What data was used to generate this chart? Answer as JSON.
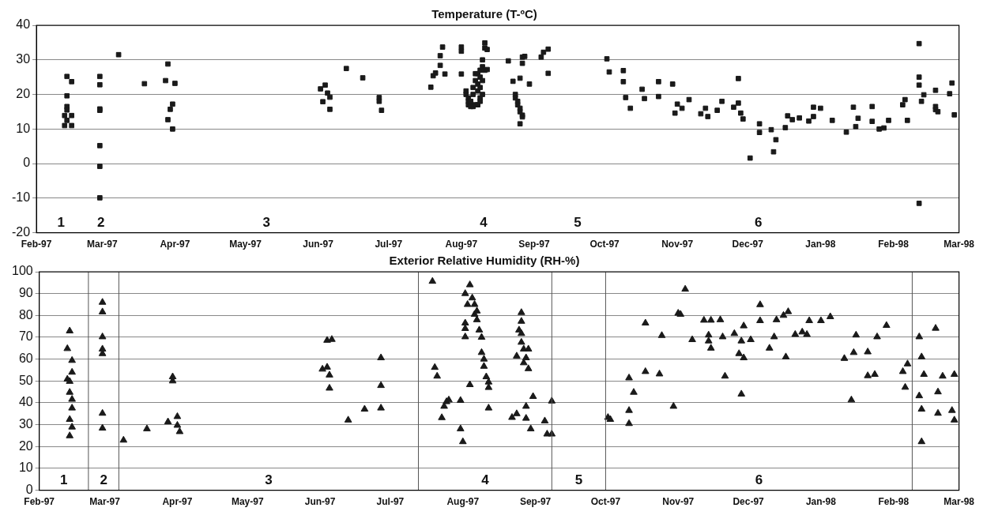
{
  "chart_data": [
    {
      "type": "scatter",
      "title": "Temperature (T-ºC)",
      "marker": "square",
      "grid": "y",
      "legend": false,
      "xlim": [
        "1997-02",
        "1998-03"
      ],
      "xticks": [
        {
          "value": "1997-02",
          "label": "Feb-97"
        },
        {
          "value": "1997-03",
          "label": "Mar-97"
        },
        {
          "value": "1997-04",
          "label": "Apr-97"
        },
        {
          "value": "1997-05",
          "label": "May-97"
        },
        {
          "value": "1997-06",
          "label": "Jun-97"
        },
        {
          "value": "1997-07",
          "label": "Jul-97"
        },
        {
          "value": "1997-08",
          "label": "Aug-97"
        },
        {
          "value": "1997-09",
          "label": "Sep-97"
        },
        {
          "value": "1997-10",
          "label": "Oct-97"
        },
        {
          "value": "1997-11",
          "label": "Nov-97"
        },
        {
          "value": "1997-12",
          "label": "Dec-97"
        },
        {
          "value": "1998-01",
          "label": "Jan-98"
        },
        {
          "value": "1998-02",
          "label": "Feb-98"
        },
        {
          "value": "1998-03",
          "label": "Mar-98"
        }
      ],
      "ylim": [
        -20,
        40
      ],
      "yticks": [
        -20,
        -10,
        0,
        10,
        20,
        30,
        40
      ],
      "series": [
        {
          "color": "#1a1a1a",
          "x": [
            "1997-02-14",
            "1997-02-16",
            "1997-02-14",
            "1997-02-14",
            "1997-02-14",
            "1997-02-13",
            "1997-02-16",
            "1997-02-14",
            "1997-02-13",
            "1997-02-16",
            "1997-02-28",
            "1997-02-28",
            "1997-02-28",
            "1997-02-28",
            "1997-02-28",
            "1997-02-28",
            "1997-02-28",
            "1997-03-08",
            "1997-03-19",
            "1997-03-28",
            "1997-03-29",
            "1997-04-01",
            "1997-03-31",
            "1997-03-30",
            "1997-03-29",
            "1997-03-31",
            "1997-06-02",
            "1997-06-04",
            "1997-06-03",
            "1997-06-05",
            "1997-06-06",
            "1997-06-06",
            "1997-06-13",
            "1997-06-20",
            "1997-06-27",
            "1997-06-27",
            "1997-06-28",
            "1997-07-19",
            "1997-07-20",
            "1997-07-21",
            "1997-07-23",
            "1997-07-23",
            "1997-07-24",
            "1997-07-25",
            "1997-08-01",
            "1997-08-01",
            "1997-08-01",
            "1997-08-03",
            "1997-08-03",
            "1997-08-04",
            "1997-08-04",
            "1997-08-04",
            "1997-08-05",
            "1997-08-05",
            "1997-08-05",
            "1997-08-06",
            "1997-08-06",
            "1997-08-06",
            "1997-08-07",
            "1997-08-07",
            "1997-08-07",
            "1997-08-08",
            "1997-08-08",
            "1997-08-08",
            "1997-08-08",
            "1997-08-09",
            "1997-08-09",
            "1997-08-09",
            "1997-08-09",
            "1997-08-09",
            "1997-08-10",
            "1997-08-10",
            "1997-08-10",
            "1997-08-10",
            "1997-08-11",
            "1997-08-11",
            "1997-08-11",
            "1997-08-12",
            "1997-08-12",
            "1997-08-21",
            "1997-08-23",
            "1997-08-26",
            "1997-08-27",
            "1997-08-27",
            "1997-08-28",
            "1997-08-30",
            "1997-08-24",
            "1997-08-24",
            "1997-08-25",
            "1997-08-25",
            "1997-08-26",
            "1997-08-26",
            "1997-08-27",
            "1997-08-27",
            "1997-08-26",
            "1997-09-04",
            "1997-09-05",
            "1997-09-07",
            "1997-09-07",
            "1997-10-02",
            "1997-10-03",
            "1997-10-09",
            "1997-10-09",
            "1997-10-10",
            "1997-10-12",
            "1997-10-17",
            "1997-10-18",
            "1997-10-24",
            "1997-10-24",
            "1997-10-30",
            "1997-10-31",
            "1997-11-01",
            "1997-11-03",
            "1997-11-06",
            "1997-11-11",
            "1997-11-13",
            "1997-11-14",
            "1997-11-18",
            "1997-11-20",
            "1997-11-25",
            "1997-11-27",
            "1997-11-27",
            "1997-11-28",
            "1997-11-29",
            "1997-12-02",
            "1997-12-06",
            "1997-12-06",
            "1997-12-11",
            "1997-12-13",
            "1997-12-12",
            "1997-12-17",
            "1997-12-18",
            "1997-12-20",
            "1997-12-23",
            "1997-12-27",
            "1997-12-29",
            "1997-12-29",
            "1998-01-01",
            "1998-01-06",
            "1998-01-12",
            "1998-01-15",
            "1998-01-16",
            "1998-01-17",
            "1998-01-23",
            "1998-01-23",
            "1998-01-26",
            "1998-01-28",
            "1998-01-30",
            "1998-02-05",
            "1998-02-06",
            "1998-02-07",
            "1998-02-12",
            "1998-02-12",
            "1998-02-12",
            "1998-02-12",
            "1998-02-13",
            "1998-02-14",
            "1998-02-19",
            "1998-02-19",
            "1998-02-19",
            "1998-02-20",
            "1998-02-25",
            "1998-02-26",
            "1998-02-27"
          ],
          "values": [
            25.2,
            23.7,
            19.6,
            16.5,
            15.5,
            13.9,
            13.9,
            12.5,
            11,
            11,
            25.2,
            22.8,
            15.8,
            15.4,
            5.2,
            -0.8,
            -9.9,
            31.5,
            23.1,
            24,
            28.8,
            23.2,
            17.2,
            15.7,
            12.7,
            10,
            21.6,
            22.7,
            17.9,
            20.4,
            19.2,
            15.7,
            27.5,
            24.8,
            19.1,
            18,
            15.4,
            22.1,
            25.4,
            26.2,
            28.4,
            31.2,
            33.7,
            25.9,
            33.7,
            32.5,
            25.9,
            21,
            20,
            19,
            18,
            17,
            17,
            16.5,
            18,
            16.5,
            20,
            22,
            17,
            24,
            26,
            17,
            21,
            23,
            26,
            19,
            22,
            25,
            27,
            18,
            20,
            24,
            28,
            30,
            27,
            34.9,
            33.4,
            27.2,
            33,
            29.7,
            23.8,
            24.7,
            29,
            30.8,
            31,
            23,
            20,
            19,
            18,
            17,
            16,
            15,
            14,
            13.5,
            11.5,
            30.8,
            32.2,
            33.1,
            26.1,
            30.3,
            26.5,
            26.9,
            23.7,
            19.1,
            16,
            21.5,
            18.8,
            23.7,
            19.4,
            23,
            14.6,
            17.2,
            16,
            18.5,
            14.4,
            16,
            13.6,
            15.4,
            18,
            16.3,
            17.5,
            24.6,
            14.6,
            12.9,
            1.6,
            11.5,
            9,
            9.8,
            6.9,
            3.4,
            10.4,
            13.8,
            12.7,
            13.2,
            12.3,
            16.3,
            13.6,
            16,
            12.5,
            9.1,
            16.3,
            10.7,
            13.1,
            16.5,
            12.2,
            10,
            10.3,
            12.5,
            17,
            18.5,
            12.5,
            -11.5,
            34.7,
            25,
            22.7,
            18,
            19.9,
            21.2,
            16.5,
            15.6,
            15,
            20.2,
            23.3,
            14.1
          ]
        }
      ],
      "annotations": [
        "1",
        "2",
        "3",
        "4",
        "5",
        "6"
      ]
    },
    {
      "type": "scatter",
      "title": "Exterior Relative Humidity (RH-%)",
      "marker": "triangle",
      "grid": "y",
      "legend": false,
      "xlim": [
        "1997-02",
        "1998-03"
      ],
      "xticks": [
        {
          "value": "1997-02",
          "label": "Feb-97"
        },
        {
          "value": "1997-03",
          "label": "Mar-97"
        },
        {
          "value": "1997-04",
          "label": "Apr-97"
        },
        {
          "value": "1997-05",
          "label": "May-97"
        },
        {
          "value": "1997-06",
          "label": "Jun-97"
        },
        {
          "value": "1997-07",
          "label": "Jul-97"
        },
        {
          "value": "1997-08",
          "label": "Aug-97"
        },
        {
          "value": "1997-09",
          "label": "Sep-97"
        },
        {
          "value": "1997-10",
          "label": "Oct-97"
        },
        {
          "value": "1997-11",
          "label": "Nov-97"
        },
        {
          "value": "1997-12",
          "label": "Dec-97"
        },
        {
          "value": "1998-01",
          "label": "Jan-98"
        },
        {
          "value": "1998-02",
          "label": "Feb-98"
        },
        {
          "value": "1998-03",
          "label": "Mar-98"
        }
      ],
      "ylim": [
        0,
        100
      ],
      "yticks": [
        0,
        10,
        20,
        30,
        40,
        50,
        60,
        70,
        80,
        90,
        100
      ],
      "ref_lines": [
        {
          "axis": "x",
          "value": "1997-02-22",
          "color": "#555555"
        },
        {
          "axis": "x",
          "value": "1997-03-07",
          "color": "#555555"
        },
        {
          "axis": "x",
          "value": "1997-07-13",
          "color": "#555555"
        },
        {
          "axis": "x",
          "value": "1997-09-08",
          "color": "#555555"
        },
        {
          "axis": "x",
          "value": "1997-10-01",
          "color": "#555555"
        },
        {
          "axis": "x",
          "value": "1998-02-09",
          "color": "#555555"
        }
      ],
      "series": [
        {
          "color": "#1a1a1a",
          "x": [
            "1997-02-14",
            "1997-02-13",
            "1997-02-15",
            "1997-02-15",
            "1997-02-13",
            "1997-02-14",
            "1997-02-14",
            "1997-02-15",
            "1997-02-15",
            "1997-02-14",
            "1997-02-15",
            "1997-02-14",
            "1997-02-28",
            "1997-02-28",
            "1997-02-28",
            "1997-02-28",
            "1997-02-28",
            "1997-02-28",
            "1997-02-28",
            "1997-03-09",
            "1997-03-19",
            "1997-03-28",
            "1997-03-30",
            "1997-03-30",
            "1997-04-01",
            "1997-04-01",
            "1997-04-02",
            "1997-06-02",
            "1997-06-04",
            "1997-06-06",
            "1997-06-04",
            "1997-06-05",
            "1997-06-05",
            "1997-06-13",
            "1997-06-20",
            "1997-06-27",
            "1997-06-27",
            "1997-06-27",
            "1997-07-19",
            "1997-07-20",
            "1997-07-21",
            "1997-07-23",
            "1997-07-24",
            "1997-07-25",
            "1997-07-26",
            "1997-07-31",
            "1997-07-31",
            "1997-08-01",
            "1997-08-02",
            "1997-08-02",
            "1997-08-02",
            "1997-08-02",
            "1997-08-03",
            "1997-08-04",
            "1997-08-04",
            "1997-08-05",
            "1997-08-06",
            "1997-08-06",
            "1997-08-07",
            "1997-08-07",
            "1997-08-08",
            "1997-08-09",
            "1997-08-09",
            "1997-08-10",
            "1997-08-10",
            "1997-08-11",
            "1997-08-12",
            "1997-08-12",
            "1997-08-12",
            "1997-08-22",
            "1997-08-24",
            "1997-08-26",
            "1997-08-26",
            "1997-08-25",
            "1997-08-26",
            "1997-08-26",
            "1997-08-24",
            "1997-08-27",
            "1997-08-29",
            "1997-08-28",
            "1997-08-27",
            "1997-08-29",
            "1997-08-28",
            "1997-08-28",
            "1997-08-30",
            "1997-08-31",
            "1997-09-05",
            "1997-09-06",
            "1997-09-08",
            "1997-09-08",
            "1997-10-02",
            "1997-10-03",
            "1997-10-11",
            "1997-10-11",
            "1997-10-11",
            "1997-10-13",
            "1997-10-18",
            "1997-10-18",
            "1997-10-24",
            "1997-10-25",
            "1997-10-30",
            "1997-11-01",
            "1997-11-02",
            "1997-11-04",
            "1997-11-07",
            "1997-11-12",
            "1997-11-14",
            "1997-11-14",
            "1997-11-15",
            "1997-11-15",
            "1997-11-19",
            "1997-11-20",
            "1997-11-21",
            "1997-11-25",
            "1997-11-28",
            "1997-11-29",
            "1997-11-27",
            "1997-11-29",
            "1997-11-28",
            "1997-12-02",
            "1997-12-06",
            "1997-12-06",
            "1997-12-10",
            "1997-12-12",
            "1997-12-13",
            "1997-12-16",
            "1997-12-17",
            "1997-12-18",
            "1997-12-21",
            "1997-12-24",
            "1997-12-26",
            "1997-12-27",
            "1998-01-01",
            "1998-01-05",
            "1998-01-11",
            "1998-01-14",
            "1998-01-15",
            "1998-01-16",
            "1998-01-21",
            "1998-01-21",
            "1998-01-24",
            "1998-01-25",
            "1998-01-29",
            "1998-02-05",
            "1998-02-07",
            "1998-02-06",
            "1998-02-12",
            "1998-02-13",
            "1998-02-12",
            "1998-02-13",
            "1998-02-13",
            "1998-02-14",
            "1998-02-19",
            "1998-02-20",
            "1998-02-20",
            "1998-02-22",
            "1998-02-26",
            "1998-02-27",
            "1998-02-27"
          ],
          "values": [
            72.9,
            64.8,
            59.4,
            54,
            50.8,
            49.8,
            44.8,
            41.6,
            37.6,
            32.4,
            28.9,
            24.9,
            86,
            81.6,
            70.2,
            64.6,
            62.5,
            35.2,
            28.4,
            22.9,
            28.1,
            31.3,
            51.9,
            50,
            33.7,
            29.7,
            26.8,
            55.4,
            68.6,
            69,
            56.3,
            52.7,
            46.7,
            32.1,
            37.1,
            60.6,
            47.9,
            37.6,
            95.6,
            56.2,
            52.2,
            33.2,
            38.4,
            40.5,
            41.3,
            41.1,
            28.1,
            22.2,
            76.5,
            74,
            70.2,
            90,
            85,
            94,
            48.3,
            88,
            85,
            80.5,
            82,
            78,
            73.3,
            70,
            63,
            60,
            56.7,
            51.9,
            49.5,
            47,
            37.6,
            33.3,
            35,
            81.3,
            77.3,
            73.3,
            71.7,
            67.7,
            61.4,
            64.6,
            64.6,
            60.6,
            58.3,
            55.6,
            38.4,
            32.9,
            28.1,
            42.9,
            31.7,
            25.7,
            25.7,
            40.8,
            33.3,
            32.4,
            36.5,
            30.5,
            51.4,
            44.8,
            54.3,
            76.5,
            53.2,
            70.8,
            38.4,
            81,
            80.5,
            92,
            68.9,
            77.8,
            71,
            68.3,
            65,
            77.8,
            78,
            70.2,
            52.2,
            71.7,
            68.3,
            75.2,
            62.5,
            60.6,
            44,
            68.9,
            84.9,
            77.6,
            65,
            70.2,
            78,
            80,
            61,
            81.7,
            71.3,
            72.4,
            71.3,
            77.6,
            77.6,
            79.4,
            60.3,
            41.3,
            63,
            71,
            63.3,
            52.4,
            53,
            70.2,
            75.4,
            54.3,
            57.8,
            47.1,
            70.2,
            61,
            43.2,
            37.1,
            22.2,
            53,
            74.1,
            45,
            35.2,
            52.2,
            36.5,
            32.1,
            53
          ]
        }
      ],
      "annotations": [
        "1",
        "2",
        "3",
        "4",
        "5",
        "6"
      ]
    }
  ]
}
